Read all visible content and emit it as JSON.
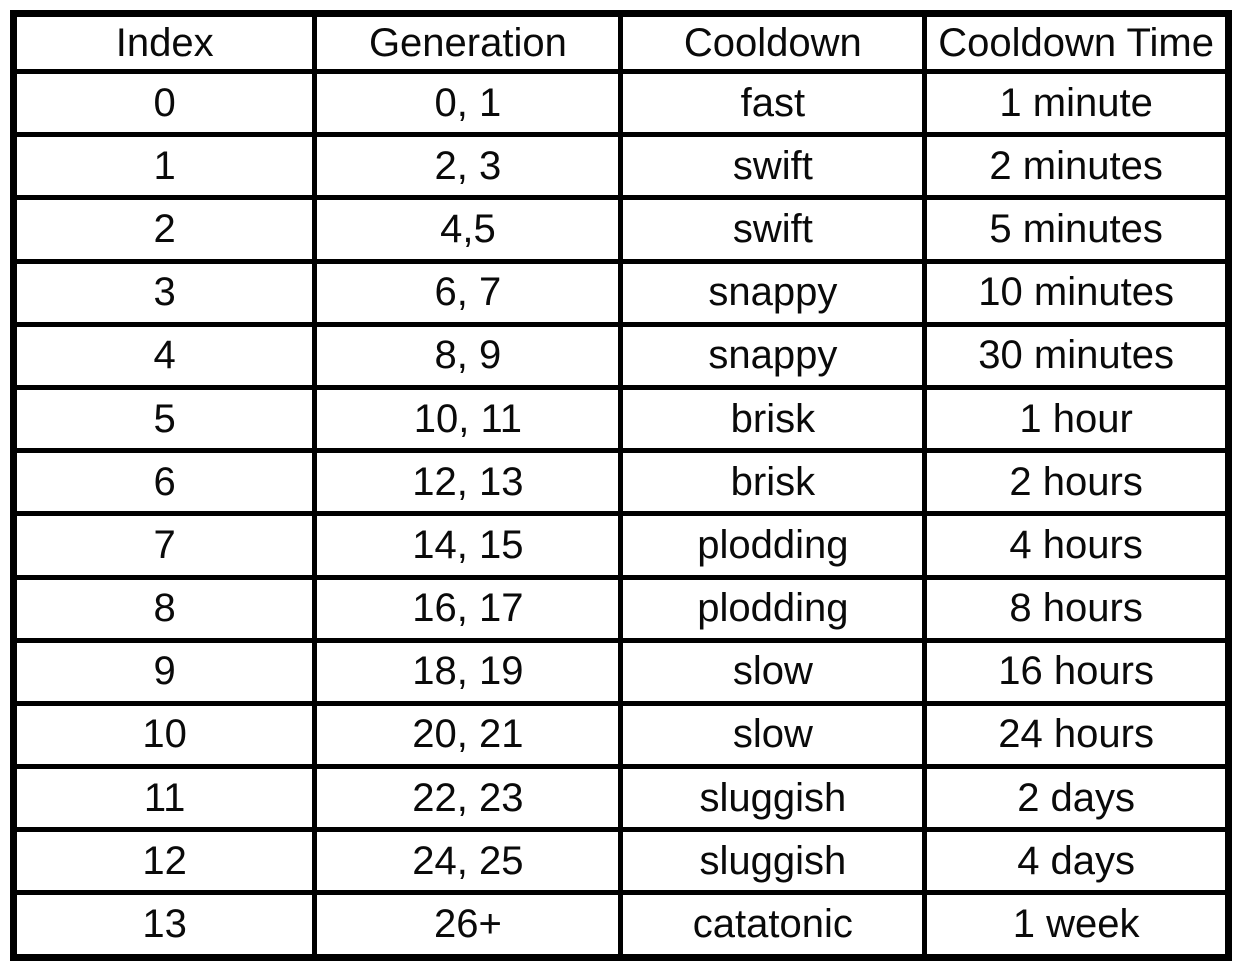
{
  "table": {
    "columns": [
      "Index",
      "Generation",
      "Cooldown",
      "Cooldown Time"
    ],
    "rows": [
      [
        "0",
        "0, 1",
        "fast",
        "1 minute"
      ],
      [
        "1",
        "2, 3",
        "swift",
        "2 minutes"
      ],
      [
        "2",
        "4,5",
        "swift",
        "5 minutes"
      ],
      [
        "3",
        "6, 7",
        "snappy",
        "10 minutes"
      ],
      [
        "4",
        "8, 9",
        "snappy",
        "30 minutes"
      ],
      [
        "5",
        "10, 11",
        "brisk",
        "1 hour"
      ],
      [
        "6",
        "12, 13",
        "brisk",
        "2 hours"
      ],
      [
        "7",
        "14, 15",
        "plodding",
        "4 hours"
      ],
      [
        "8",
        "16, 17",
        "plodding",
        "8 hours"
      ],
      [
        "9",
        "18, 19",
        "slow",
        "16 hours"
      ],
      [
        "10",
        "20, 21",
        "slow",
        "24 hours"
      ],
      [
        "11",
        "22, 23",
        "sluggish",
        "2 days"
      ],
      [
        "12",
        "24, 25",
        "sluggish",
        "4 days"
      ],
      [
        "13",
        "26+",
        "catatonic",
        "1 week"
      ]
    ],
    "colors": {
      "border": "#000000",
      "background": "#ffffff",
      "text": "#0a0a0a"
    }
  }
}
